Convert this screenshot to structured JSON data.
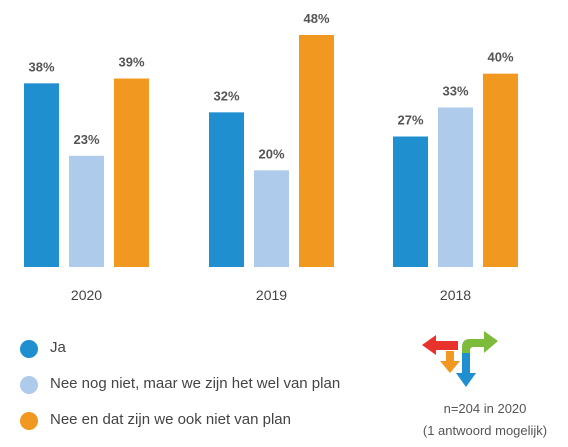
{
  "chart_data": {
    "type": "bar",
    "categories": [
      "2020",
      "2019",
      "2018"
    ],
    "series": [
      {
        "name": "Ja",
        "color": "#1f8fcf",
        "values": [
          38,
          32,
          27
        ]
      },
      {
        "name": "Nee nog niet, maar we zijn het wel van plan",
        "color": "#aecbeb",
        "values": [
          23,
          20,
          33
        ]
      },
      {
        "name": "Nee en dat zijn we ook niet van plan",
        "color": "#f0981f",
        "values": [
          39,
          48,
          40
        ]
      }
    ],
    "value_suffix": "%",
    "ylim": [
      0,
      50
    ],
    "grid": false,
    "legend_position": "bottom-left"
  },
  "note": {
    "line1": "n=204 in 2020",
    "line2": "(1 antwoord mogelijk)"
  },
  "logo": {
    "icon": "direction-arrows-icon",
    "colors": [
      "#e8322c",
      "#f0981f",
      "#1f8fcf",
      "#7dbb3a"
    ]
  }
}
